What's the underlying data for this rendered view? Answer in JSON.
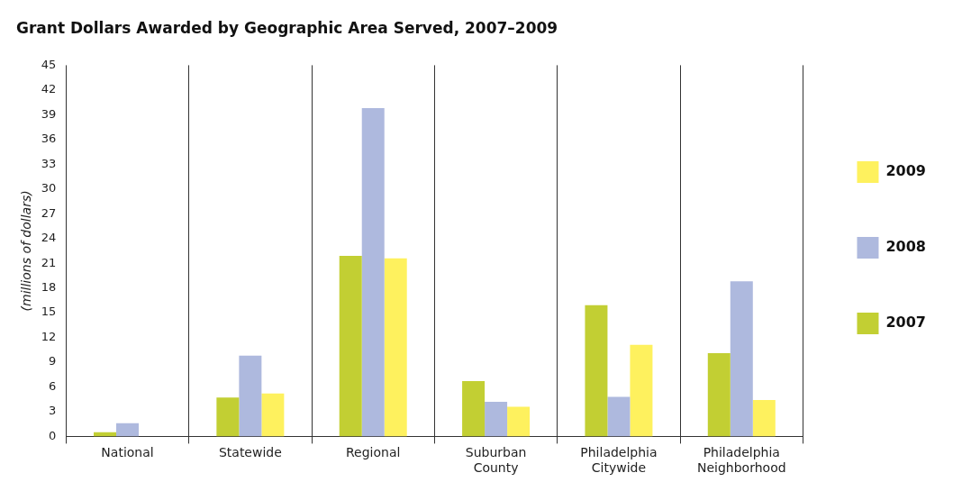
{
  "chart_data": {
    "type": "bar",
    "title": "Grant Dollars Awarded by Geographic Area Served, 2007–2009",
    "ylabel": "(millions of dollars)",
    "categories": [
      "National",
      "Statewide",
      "Regional",
      "Suburban County",
      "Philadelphia Citywide",
      "Philadelphia Neighborhood"
    ],
    "series": [
      {
        "name": "2007",
        "color": "#c2cf33",
        "values": [
          0.5,
          4.7,
          21.9,
          6.7,
          15.9,
          10.1
        ]
      },
      {
        "name": "2008",
        "color": "#aeb9de",
        "values": [
          1.6,
          9.8,
          39.8,
          4.2,
          4.8,
          18.8
        ]
      },
      {
        "name": "2009",
        "color": "#fef15e",
        "values": [
          0,
          5.2,
          21.6,
          3.6,
          11.1,
          4.4
        ]
      }
    ],
    "ylim": [
      0,
      45
    ],
    "yticks": [
      0,
      3,
      6,
      9,
      12,
      15,
      18,
      21,
      24,
      27,
      30,
      33,
      36,
      39,
      42,
      45
    ],
    "grid": "x",
    "legend": "right"
  }
}
